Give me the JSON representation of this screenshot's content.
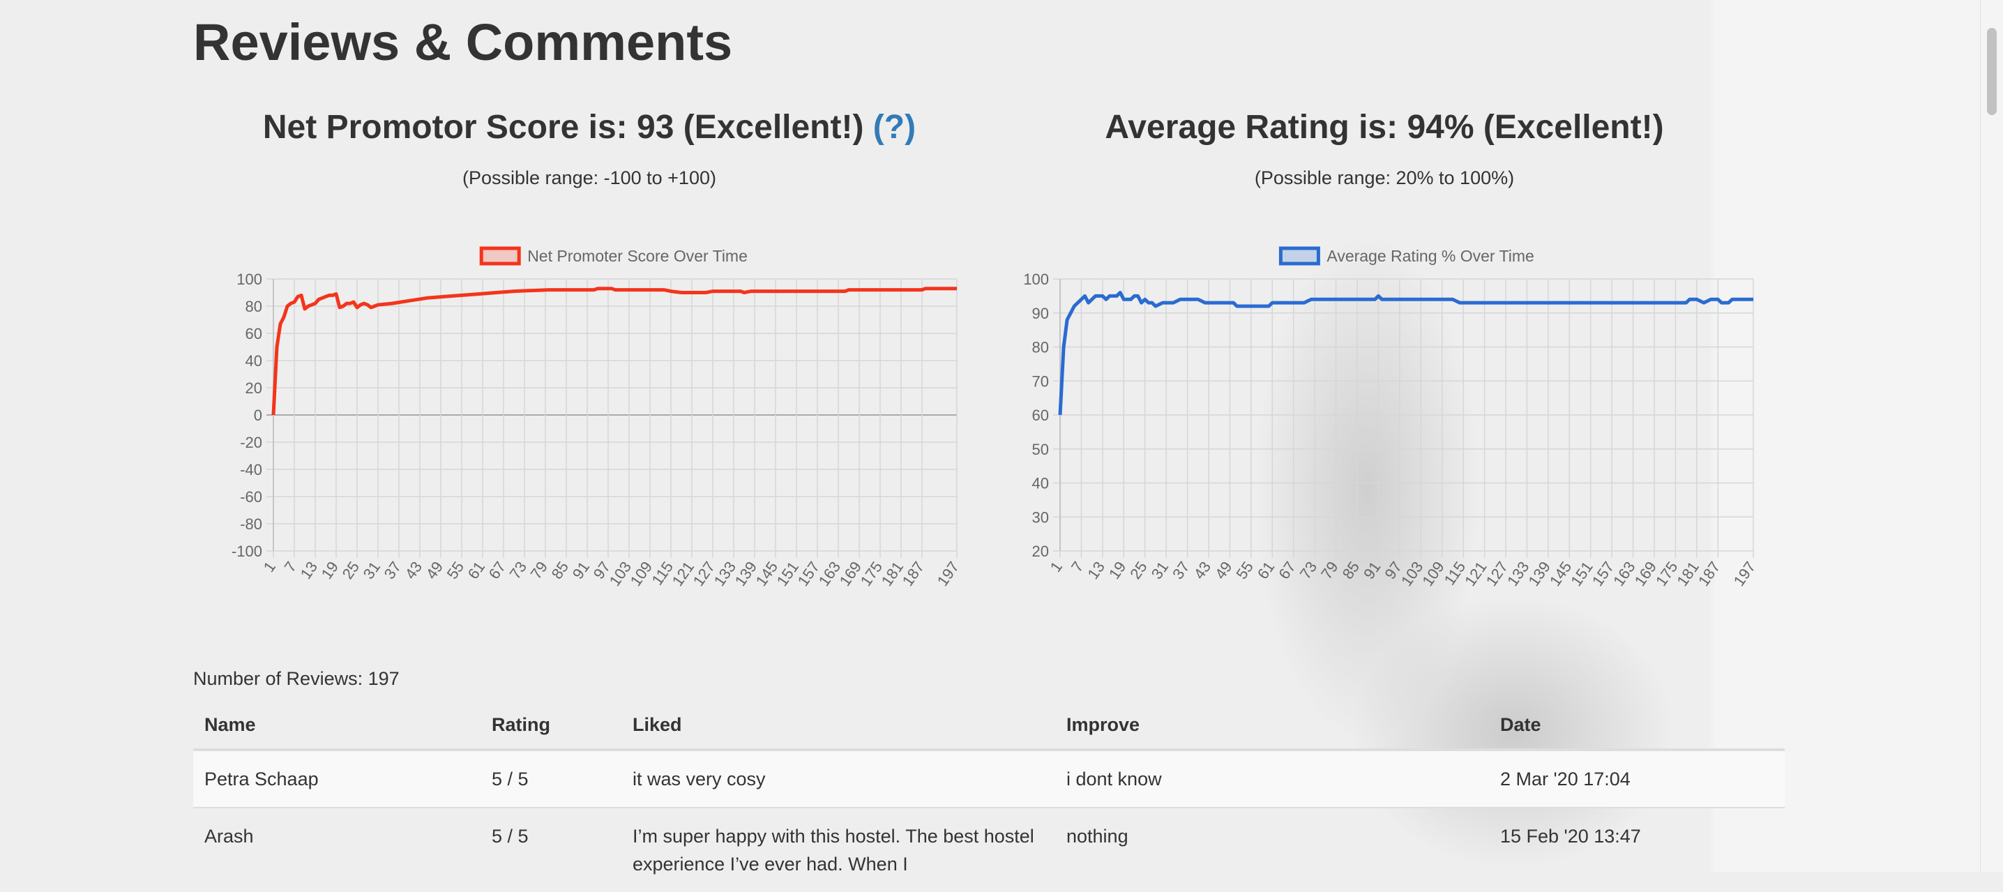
{
  "page_title": "Reviews & Comments",
  "nps": {
    "prefix": "Net Promotor Score is: ",
    "value": "93",
    "suffix": " (Excellent!) ",
    "help": "(?)",
    "range": "(Possible range: -100 to +100)"
  },
  "rating": {
    "prefix": "Average Rating is: ",
    "value": "94%",
    "suffix": " (Excellent!)",
    "range": "(Possible range: 20% to 100%)"
  },
  "chart_data": [
    {
      "type": "line",
      "legend": "Net Promoter Score Over Time",
      "color": "#f4341c",
      "fill": "#f0c8c4",
      "x_range": [
        1,
        197
      ],
      "x_tick_labels": [
        "1",
        "7",
        "13",
        "19",
        "25",
        "31",
        "37",
        "43",
        "49",
        "55",
        "61",
        "67",
        "73",
        "79",
        "85",
        "91",
        "97",
        "103",
        "109",
        "115",
        "121",
        "127",
        "133",
        "139",
        "145",
        "151",
        "157",
        "163",
        "169",
        "175",
        "181",
        "187",
        "197"
      ],
      "ylim": [
        -100,
        100
      ],
      "y_ticks": [
        100,
        80,
        60,
        40,
        20,
        0,
        -20,
        -40,
        -60,
        -80,
        -100
      ],
      "grid": true,
      "legend_position": "top",
      "points": [
        [
          1,
          0
        ],
        [
          2,
          50
        ],
        [
          3,
          67
        ],
        [
          4,
          72
        ],
        [
          5,
          80
        ],
        [
          6,
          82
        ],
        [
          7,
          83
        ],
        [
          8,
          87
        ],
        [
          9,
          88
        ],
        [
          10,
          78
        ],
        [
          11,
          80
        ],
        [
          12,
          81
        ],
        [
          13,
          82
        ],
        [
          14,
          85
        ],
        [
          15,
          86
        ],
        [
          16,
          87
        ],
        [
          17,
          88
        ],
        [
          18,
          88
        ],
        [
          19,
          89
        ],
        [
          20,
          79
        ],
        [
          21,
          80
        ],
        [
          22,
          82
        ],
        [
          23,
          82
        ],
        [
          24,
          83
        ],
        [
          25,
          79
        ],
        [
          26,
          81
        ],
        [
          27,
          82
        ],
        [
          28,
          81
        ],
        [
          29,
          79
        ],
        [
          30,
          80
        ],
        [
          31,
          81
        ],
        [
          35,
          82
        ],
        [
          40,
          84
        ],
        [
          45,
          86
        ],
        [
          50,
          87
        ],
        [
          55,
          88
        ],
        [
          60,
          89
        ],
        [
          65,
          90
        ],
        [
          70,
          91
        ],
        [
          80,
          92
        ],
        [
          93,
          92
        ],
        [
          94,
          93
        ],
        [
          98,
          93
        ],
        [
          99,
          92
        ],
        [
          106,
          92
        ],
        [
          107,
          92
        ],
        [
          113,
          92
        ],
        [
          115,
          91
        ],
        [
          118,
          90
        ],
        [
          125,
          90
        ],
        [
          127,
          91
        ],
        [
          135,
          91
        ],
        [
          136,
          90
        ],
        [
          138,
          91
        ],
        [
          165,
          91
        ],
        [
          166,
          92
        ],
        [
          187,
          92
        ],
        [
          188,
          93
        ],
        [
          197,
          93
        ]
      ]
    },
    {
      "type": "line",
      "legend": "Average Rating % Over Time",
      "color": "#2a6bd1",
      "fill": "#c4d2e8",
      "x_range": [
        1,
        197
      ],
      "x_tick_labels": [
        "1",
        "7",
        "13",
        "19",
        "25",
        "31",
        "37",
        "43",
        "49",
        "55",
        "61",
        "67",
        "73",
        "79",
        "85",
        "91",
        "97",
        "103",
        "109",
        "115",
        "121",
        "127",
        "133",
        "139",
        "145",
        "151",
        "157",
        "163",
        "169",
        "175",
        "181",
        "187",
        "197"
      ],
      "ylim": [
        20,
        100
      ],
      "y_ticks": [
        100,
        90,
        80,
        70,
        60,
        50,
        40,
        30,
        20
      ],
      "grid": true,
      "legend_position": "top",
      "points": [
        [
          1,
          60
        ],
        [
          2,
          80
        ],
        [
          3,
          88
        ],
        [
          4,
          90
        ],
        [
          5,
          92
        ],
        [
          6,
          93
        ],
        [
          7,
          94
        ],
        [
          8,
          95
        ],
        [
          9,
          93
        ],
        [
          10,
          94
        ],
        [
          11,
          95
        ],
        [
          13,
          95
        ],
        [
          14,
          94
        ],
        [
          15,
          95
        ],
        [
          17,
          95
        ],
        [
          18,
          96
        ],
        [
          19,
          94
        ],
        [
          21,
          94
        ],
        [
          22,
          95
        ],
        [
          23,
          95
        ],
        [
          24,
          93
        ],
        [
          25,
          94
        ],
        [
          26,
          93
        ],
        [
          27,
          93
        ],
        [
          28,
          92
        ],
        [
          30,
          93
        ],
        [
          33,
          93
        ],
        [
          35,
          94
        ],
        [
          40,
          94
        ],
        [
          42,
          93
        ],
        [
          50,
          93
        ],
        [
          51,
          92
        ],
        [
          60,
          92
        ],
        [
          61,
          93
        ],
        [
          70,
          93
        ],
        [
          72,
          94
        ],
        [
          90,
          94
        ],
        [
          91,
          95
        ],
        [
          92,
          94
        ],
        [
          112,
          94
        ],
        [
          114,
          93
        ],
        [
          178,
          93
        ],
        [
          179,
          94
        ],
        [
          181,
          94
        ],
        [
          183,
          93
        ],
        [
          185,
          94
        ],
        [
          187,
          94
        ],
        [
          188,
          93
        ],
        [
          190,
          93
        ],
        [
          191,
          94
        ],
        [
          197,
          94
        ]
      ]
    }
  ],
  "reviews": {
    "count_label": "Number of Reviews: 197",
    "headers": [
      "Name",
      "Rating",
      "Liked",
      "Improve",
      "Date"
    ],
    "rows": [
      {
        "name": "Petra Schaap",
        "rating": "5 / 5",
        "liked": "it was very cosy",
        "improve": "i dont know",
        "date": "2 Mar '20 17:04"
      },
      {
        "name": "Arash",
        "rating": "5 / 5",
        "liked": "I’m super happy with this hostel. The best hostel experience I’ve ever had. When I",
        "improve": "nothing",
        "date": "15 Feb '20 13:47"
      }
    ]
  }
}
